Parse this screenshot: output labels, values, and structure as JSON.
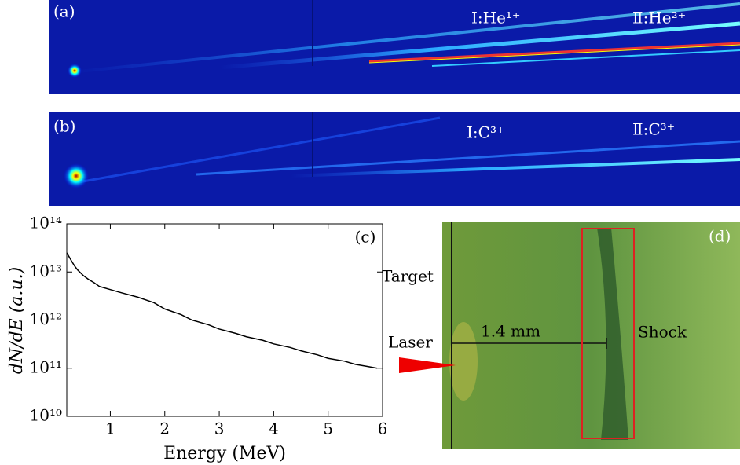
{
  "panels": [
    {
      "label": "(a)",
      "annotations": [
        "I:He¹⁺",
        "Ⅱ:He²⁺"
      ]
    },
    {
      "label": "(b)",
      "annotations": [
        "I:C³⁺",
        "Ⅱ:C³⁺"
      ]
    },
    {
      "label": "(d)",
      "annotations": [
        "Target",
        "Laser",
        "1.4 mm",
        "Shock"
      ]
    }
  ],
  "chart_data": {
    "type": "line",
    "panel_label": "(c)",
    "x_label": "Energy (MeV)",
    "y_label": "dN/dE (a.u.)",
    "yscale": "log",
    "color": "#000000",
    "x": [
      0.2,
      0.25,
      0.3,
      0.35,
      0.4,
      0.5,
      0.6,
      0.7,
      0.8,
      1.0,
      1.2,
      1.5,
      1.8,
      2.0,
      2.3,
      2.5,
      2.8,
      3.0,
      3.3,
      3.5,
      3.8,
      4.0,
      4.3,
      4.5,
      4.8,
      5.0,
      5.3,
      5.5,
      5.7,
      5.9
    ],
    "series": [
      {
        "name": "spectrum",
        "values": [
          25000000000000,
          20000000000000,
          16000000000000,
          13000000000000,
          11000000000000,
          8500000000000,
          7000000000000,
          6000000000000,
          5000000000000,
          4300000000000,
          3700000000000,
          3000000000000,
          2300000000000,
          1700000000000,
          1300000000000,
          1000000000000,
          800000000000,
          650000000000,
          530000000000,
          450000000000,
          380000000000,
          320000000000,
          270000000000,
          230000000000,
          190000000000,
          160000000000,
          140000000000,
          120000000000,
          110000000000,
          100000000000
        ]
      }
    ],
    "xlim": [
      0.2,
      6.0
    ],
    "xticks": [
      1,
      2,
      3,
      4,
      5,
      6
    ],
    "ylim": [
      10000000000,
      100000000000000
    ],
    "yticks": [
      {
        "value": 10000000000,
        "label": "10¹⁰"
      },
      {
        "value": 100000000000,
        "label": "10¹¹"
      },
      {
        "value": 1000000000000,
        "label": "10¹²"
      },
      {
        "value": 10000000000000,
        "label": "10¹³"
      },
      {
        "value": 100000000000000,
        "label": "10¹⁴"
      }
    ]
  }
}
